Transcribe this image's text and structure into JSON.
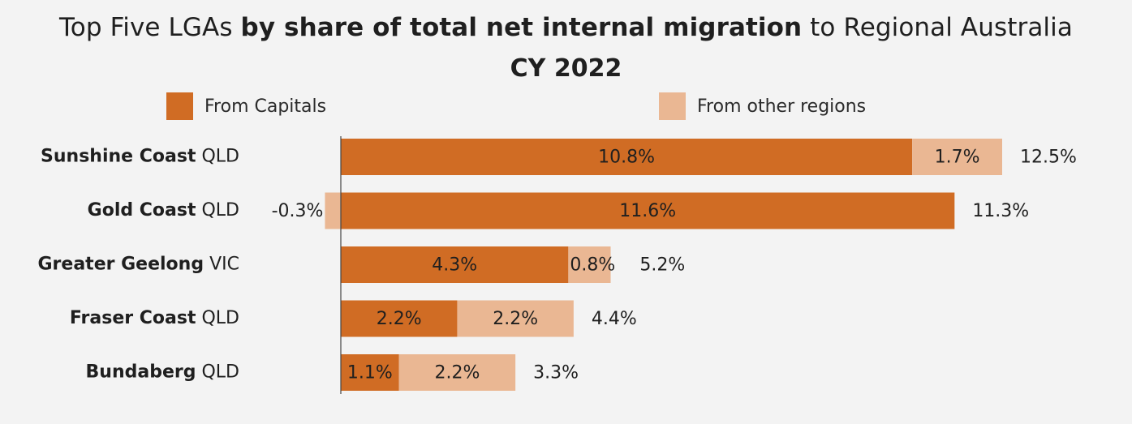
{
  "title": {
    "part1": "Top Five LGAs ",
    "part2_bold": "by share of total net internal migration",
    "part3": " to Regional Australia",
    "line2": "CY 2022"
  },
  "legend": {
    "capitals_label": "From Capitals",
    "regions_label": "From other regions"
  },
  "colors": {
    "capitals": "#d06c24",
    "regions": "#eab793",
    "axis": "#444444",
    "text": "#1f1f1f",
    "background": "#f3f3f3"
  },
  "chart_data": {
    "type": "bar",
    "orientation": "horizontal",
    "stacked": true,
    "categories": [
      {
        "name": "Sunshine Coast",
        "state": "QLD"
      },
      {
        "name": "Gold Coast",
        "state": "QLD"
      },
      {
        "name": "Greater Geelong",
        "state": "VIC"
      },
      {
        "name": "Fraser Coast",
        "state": "QLD"
      },
      {
        "name": "Bundaberg",
        "state": "QLD"
      }
    ],
    "series": [
      {
        "name": "From Capitals",
        "values": [
          10.8,
          11.6,
          4.3,
          2.2,
          1.1
        ],
        "labels": [
          "10.8%",
          "11.6%",
          "4.3%",
          "2.2%",
          "1.1%"
        ]
      },
      {
        "name": "From other regions",
        "values": [
          1.7,
          -0.3,
          0.8,
          2.2,
          2.2
        ],
        "labels": [
          "1.7%",
          "-0.3%",
          "0.8%",
          "2.2%",
          "2.2%"
        ]
      }
    ],
    "totals": {
      "values": [
        12.5,
        11.3,
        5.2,
        4.4,
        3.3
      ],
      "labels": [
        "12.5%",
        "11.3%",
        "5.2%",
        "4.4%",
        "3.3%"
      ]
    },
    "units": "%",
    "xlim": [
      -0.3,
      12.5
    ],
    "grid": false,
    "legend_position": "top"
  }
}
